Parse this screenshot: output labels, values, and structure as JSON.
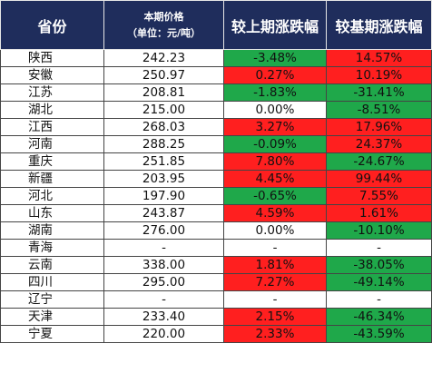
{
  "colors": {
    "header_bg": "#1f2d5c",
    "up": "#ff1f1f",
    "down": "#1fa84a"
  },
  "header": {
    "province": "省份",
    "price_line1": "本期价格",
    "price_line2": "（单位：元/吨）",
    "mom": "较上期涨跌幅",
    "yoy": "较基期涨跌幅"
  },
  "rows": [
    {
      "province": "陕西",
      "price": "242.23",
      "mom": "-3.48%",
      "mom_color": "green",
      "yoy": "14.57%",
      "yoy_color": "red"
    },
    {
      "province": "安徽",
      "price": "250.97",
      "mom": "0.27%",
      "mom_color": "red",
      "yoy": "10.19%",
      "yoy_color": "red"
    },
    {
      "province": "江苏",
      "price": "208.81",
      "mom": "-1.83%",
      "mom_color": "green",
      "yoy": "-31.41%",
      "yoy_color": "green"
    },
    {
      "province": "湖北",
      "price": "215.00",
      "mom": "0.00%",
      "mom_color": "white",
      "yoy": "-8.51%",
      "yoy_color": "green"
    },
    {
      "province": "江西",
      "price": "268.03",
      "mom": "3.27%",
      "mom_color": "red",
      "yoy": "17.96%",
      "yoy_color": "red"
    },
    {
      "province": "河南",
      "price": "288.25",
      "mom": "-0.09%",
      "mom_color": "green",
      "yoy": "24.37%",
      "yoy_color": "red"
    },
    {
      "province": "重庆",
      "price": "251.85",
      "mom": "7.80%",
      "mom_color": "red",
      "yoy": "-24.67%",
      "yoy_color": "green"
    },
    {
      "province": "新疆",
      "price": "203.95",
      "mom": "4.45%",
      "mom_color": "red",
      "yoy": "99.44%",
      "yoy_color": "red"
    },
    {
      "province": "河北",
      "price": "197.90",
      "mom": "-0.65%",
      "mom_color": "green",
      "yoy": "7.55%",
      "yoy_color": "red"
    },
    {
      "province": "山东",
      "price": "243.87",
      "mom": "4.59%",
      "mom_color": "red",
      "yoy": "1.61%",
      "yoy_color": "red"
    },
    {
      "province": "湖南",
      "price": "276.00",
      "mom": "0.00%",
      "mom_color": "white",
      "yoy": "-10.10%",
      "yoy_color": "green"
    },
    {
      "province": "青海",
      "price": "-",
      "mom": "-",
      "mom_color": "white",
      "yoy": "-",
      "yoy_color": "white"
    },
    {
      "province": "云南",
      "price": "338.00",
      "mom": "1.81%",
      "mom_color": "red",
      "yoy": "-38.05%",
      "yoy_color": "green"
    },
    {
      "province": "四川",
      "price": "295.00",
      "mom": "7.27%",
      "mom_color": "red",
      "yoy": "-49.14%",
      "yoy_color": "green"
    },
    {
      "province": "辽宁",
      "price": "-",
      "mom": "-",
      "mom_color": "white",
      "yoy": "-",
      "yoy_color": "white"
    },
    {
      "province": "天津",
      "price": "233.40",
      "mom": "2.15%",
      "mom_color": "red",
      "yoy": "-46.34%",
      "yoy_color": "green"
    },
    {
      "province": "宁夏",
      "price": "220.00",
      "mom": "2.33%",
      "mom_color": "red",
      "yoy": "-43.59%",
      "yoy_color": "green"
    }
  ]
}
